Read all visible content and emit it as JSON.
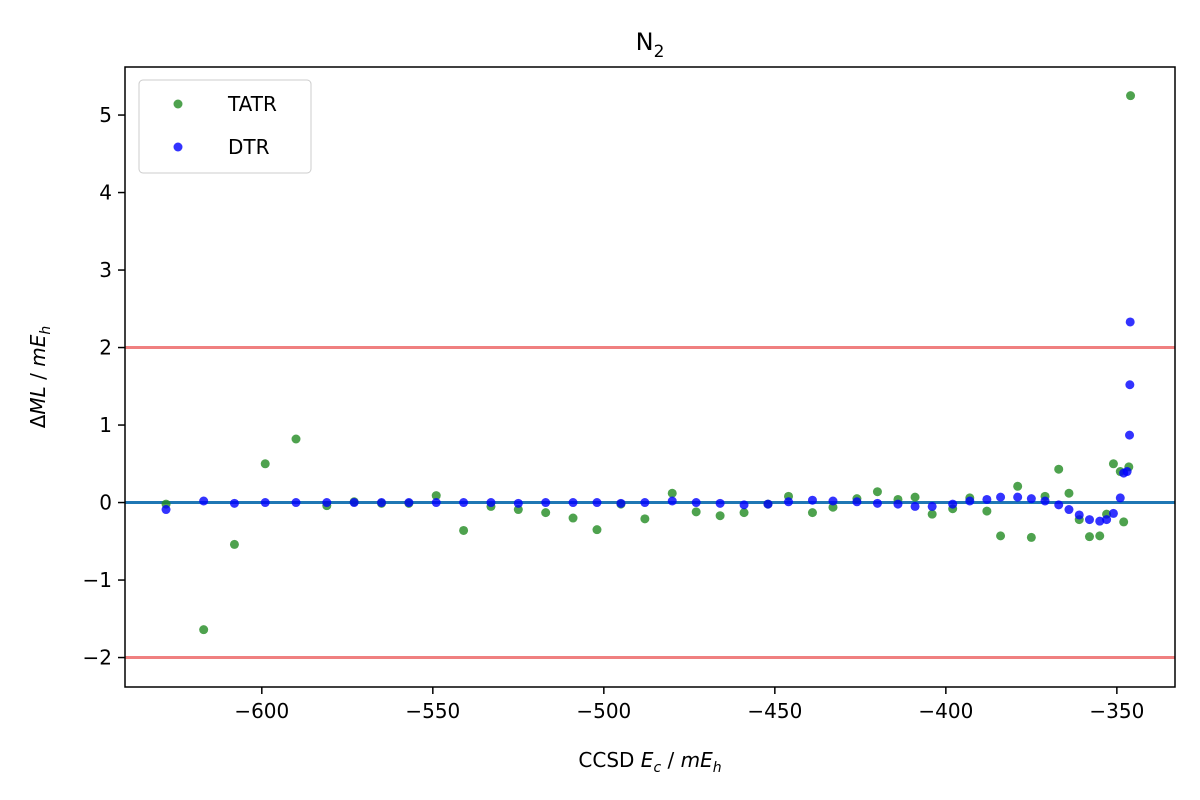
{
  "chart_data": {
    "type": "scatter",
    "title_main": "N",
    "title_sub": "2",
    "xlabel": {
      "prefix": "CCSD ",
      "var": "E",
      "var_sub": "c",
      "mid": " / ",
      "unit": "mE",
      "unit_sub": "h"
    },
    "ylabel": {
      "delta": "Δ",
      "var": "ML",
      "mid": " / ",
      "unit": "mE",
      "unit_sub": "h"
    },
    "xlim": [
      -640,
      -333
    ],
    "ylim": [
      -2.38,
      5.62
    ],
    "xticks": [
      -600,
      -550,
      -500,
      -450,
      -400,
      -350
    ],
    "xtick_labels": [
      "−600",
      "−550",
      "−500",
      "−450",
      "−400",
      "−350"
    ],
    "yticks": [
      -2,
      -1,
      0,
      1,
      2,
      3,
      4,
      5
    ],
    "ytick_labels": [
      "−2",
      "−1",
      "0",
      "1",
      "2",
      "3",
      "4",
      "5"
    ],
    "grid": false,
    "legend_position": "upper-left",
    "reference_lines": [
      {
        "y": 2,
        "color": "#f08080"
      },
      {
        "y": -2,
        "color": "#f08080"
      },
      {
        "y": 0,
        "color": "#1f77b4"
      }
    ],
    "series": [
      {
        "name": "TATR",
        "color": "#228b22",
        "points": [
          [
            -628,
            -0.02
          ],
          [
            -617,
            -1.64
          ],
          [
            -608,
            -0.54
          ],
          [
            -599,
            0.5
          ],
          [
            -590,
            0.82
          ],
          [
            -581,
            -0.04
          ],
          [
            -573,
            0.01
          ],
          [
            -565,
            -0.01
          ],
          [
            -557,
            -0.01
          ],
          [
            -549,
            0.09
          ],
          [
            -541,
            -0.36
          ],
          [
            -533,
            -0.05
          ],
          [
            -525,
            -0.09
          ],
          [
            -517,
            -0.13
          ],
          [
            -509,
            -0.2
          ],
          [
            -502,
            -0.35
          ],
          [
            -495,
            -0.02
          ],
          [
            -488,
            -0.21
          ],
          [
            -480,
            0.12
          ],
          [
            -473,
            -0.12
          ],
          [
            -466,
            -0.17
          ],
          [
            -459,
            -0.13
          ],
          [
            -452,
            -0.02
          ],
          [
            -446,
            0.08
          ],
          [
            -439,
            -0.13
          ],
          [
            -433,
            -0.06
          ],
          [
            -426,
            0.05
          ],
          [
            -420,
            0.14
          ],
          [
            -414,
            0.04
          ],
          [
            -409,
            0.07
          ],
          [
            -404,
            -0.15
          ],
          [
            -398,
            -0.08
          ],
          [
            -393,
            0.06
          ],
          [
            -388,
            -0.11
          ],
          [
            -384,
            -0.43
          ],
          [
            -379,
            0.21
          ],
          [
            -375,
            -0.45
          ],
          [
            -371,
            0.08
          ],
          [
            -367,
            0.43
          ],
          [
            -364,
            0.12
          ],
          [
            -361,
            -0.22
          ],
          [
            -358,
            -0.44
          ],
          [
            -355,
            -0.43
          ],
          [
            -353,
            -0.15
          ],
          [
            -351,
            0.5
          ],
          [
            -349,
            0.4
          ],
          [
            -348,
            -0.25
          ],
          [
            -346.5,
            0.46
          ],
          [
            -346,
            5.25
          ]
        ]
      },
      {
        "name": "DTR",
        "color": "#0000ff",
        "points": [
          [
            -628,
            -0.09
          ],
          [
            -617,
            0.02
          ],
          [
            -608,
            -0.01
          ],
          [
            -599,
            0.0
          ],
          [
            -590,
            0.0
          ],
          [
            -581,
            0.0
          ],
          [
            -573,
            0.0
          ],
          [
            -565,
            0.0
          ],
          [
            -557,
            0.0
          ],
          [
            -549,
            0.0
          ],
          [
            -541,
            0.0
          ],
          [
            -533,
            0.0
          ],
          [
            -525,
            -0.01
          ],
          [
            -517,
            0.0
          ],
          [
            -509,
            0.0
          ],
          [
            -502,
            0.0
          ],
          [
            -495,
            -0.01
          ],
          [
            -488,
            0.0
          ],
          [
            -480,
            0.02
          ],
          [
            -473,
            0.0
          ],
          [
            -466,
            -0.01
          ],
          [
            -459,
            -0.03
          ],
          [
            -452,
            -0.02
          ],
          [
            -446,
            0.01
          ],
          [
            -439,
            0.03
          ],
          [
            -433,
            0.02
          ],
          [
            -426,
            0.01
          ],
          [
            -420,
            -0.01
          ],
          [
            -414,
            -0.02
          ],
          [
            -409,
            -0.05
          ],
          [
            -404,
            -0.05
          ],
          [
            -398,
            -0.02
          ],
          [
            -393,
            0.02
          ],
          [
            -388,
            0.04
          ],
          [
            -384,
            0.07
          ],
          [
            -379,
            0.07
          ],
          [
            -375,
            0.05
          ],
          [
            -371,
            0.02
          ],
          [
            -367,
            -0.03
          ],
          [
            -364,
            -0.09
          ],
          [
            -361,
            -0.16
          ],
          [
            -358,
            -0.22
          ],
          [
            -355,
            -0.24
          ],
          [
            -353,
            -0.22
          ],
          [
            -351,
            -0.14
          ],
          [
            -349,
            0.06
          ],
          [
            -348,
            0.38
          ],
          [
            -347,
            0.4
          ],
          [
            -346.3,
            0.87
          ],
          [
            -346.2,
            1.52
          ],
          [
            -346.1,
            2.33
          ]
        ]
      }
    ]
  }
}
